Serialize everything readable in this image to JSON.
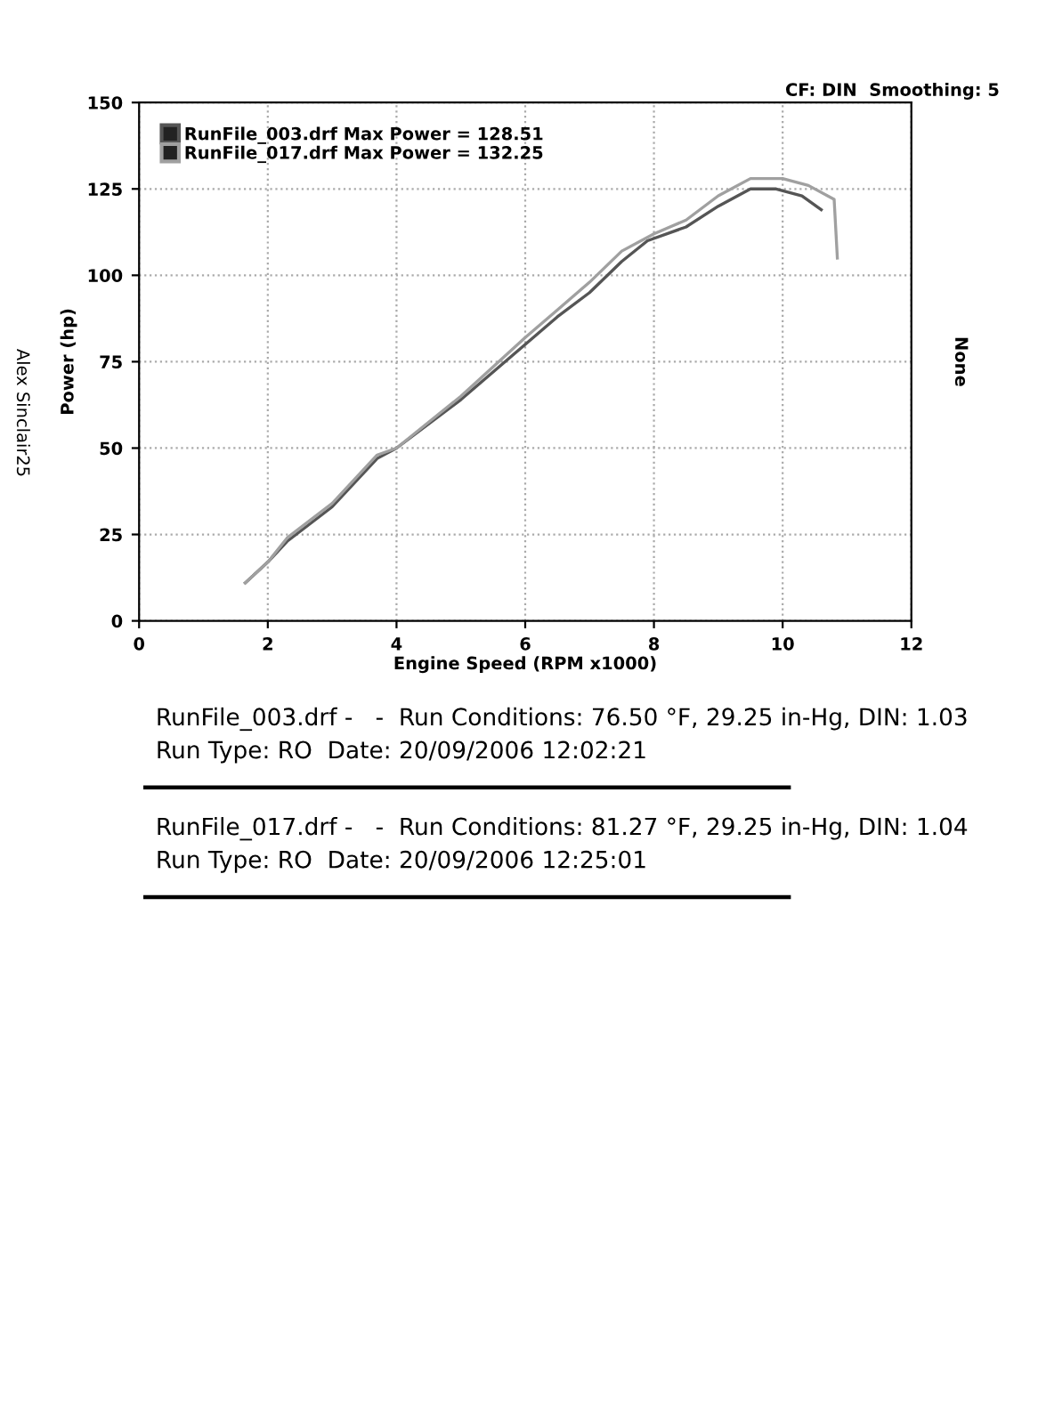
{
  "chart_data": {
    "type": "line",
    "xlabel": "Engine Speed (RPM x1000)",
    "ylabel": "Power (hp)",
    "y2label": "None",
    "xlim": [
      0,
      12
    ],
    "xticks": [
      0,
      2,
      4,
      6,
      8,
      10,
      12
    ],
    "ylim": [
      0,
      150
    ],
    "yticks": [
      0,
      25,
      50,
      75,
      100,
      125,
      150
    ],
    "grid": true,
    "legend": "top left",
    "marker": "none",
    "line_style": "solid",
    "series": [
      {
        "name": "RunFile_003.drf Max Power = 128.51",
        "color": "#555555",
        "x": [
          1.65,
          2.0,
          2.3,
          3.0,
          3.7,
          4.0,
          5.0,
          6.0,
          6.5,
          7.0,
          7.5,
          7.9,
          8.5,
          9.0,
          9.5,
          9.9,
          10.3,
          10.6
        ],
        "values": [
          11,
          17,
          23,
          33,
          47,
          50,
          64,
          80,
          88,
          95,
          104,
          110,
          114,
          120,
          125,
          125,
          123,
          119
        ]
      },
      {
        "name": "RunFile_017.drf Max Power = 132.25",
        "color": "#a0a0a0",
        "x": [
          1.65,
          2.0,
          2.3,
          3.0,
          3.7,
          4.0,
          5.0,
          6.0,
          6.5,
          7.0,
          7.5,
          8.0,
          8.5,
          9.0,
          9.5,
          10.0,
          10.4,
          10.8,
          10.85
        ],
        "values": [
          11,
          17,
          24,
          34,
          48,
          50,
          65,
          82,
          90,
          98,
          107,
          112,
          116,
          123,
          128,
          128,
          126,
          122,
          105
        ]
      }
    ],
    "annotations": [
      "CF: DIN  Smoothing: 5",
      "RunFile_003.drf -   -  Run Conditions: 76.50 °F, 29.25 in-Hg, DIN: 1.03",
      "Run Type: RO  Date: 20/09/2006 12:02:21",
      "RunFile_017.drf -   -  Run Conditions: 81.27 °F, 29.25 in-Hg, DIN: 1.04",
      "Run Type: RO  Date: 20/09/2006 12:25:01",
      "Alex Sinclair25"
    ]
  }
}
